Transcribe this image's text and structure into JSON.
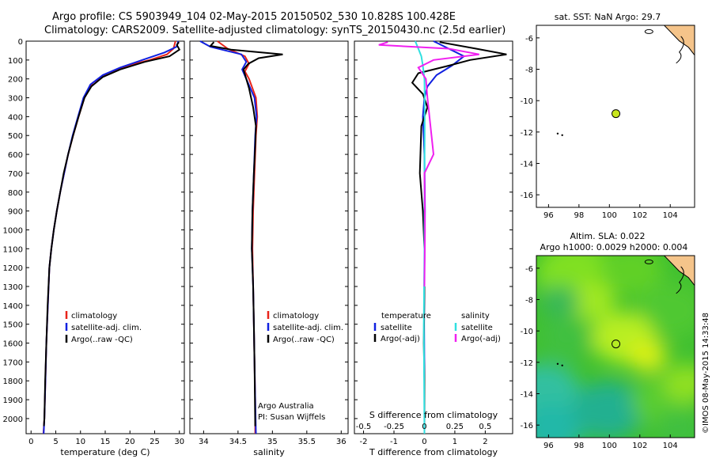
{
  "header": {
    "line1": "Argo profile: CS 5903949_104 02-May-2015 20150502_530 10.828S 100.428E",
    "line2": "Climatology: CARS2009. Satellite-adjusted climatology: synTS_20150430.nc (2.5d earlier)"
  },
  "colors": {
    "climatology": "#e8241a",
    "satellite": "#1020e0",
    "argo": "#000000",
    "sal_satellite": "#30e0e0",
    "sal_argo": "#f020f0",
    "land": "#f5c48a",
    "float_marker": "#c8e61e"
  },
  "chart_data": [
    {
      "type": "line",
      "id": "temperature",
      "xlabel": "temperature (deg C)",
      "ylabel": "",
      "xlim": [
        -1,
        31
      ],
      "ylim": [
        2080,
        0
      ],
      "xticks": [
        "0",
        "5",
        "10",
        "15",
        "20",
        "25",
        "30"
      ],
      "xtick_values": [
        0,
        5,
        10,
        15,
        20,
        25,
        30
      ],
      "yticks": [
        "0",
        "100",
        "200",
        "300",
        "400",
        "500",
        "600",
        "700",
        "800",
        "900",
        "1000",
        "1100",
        "1200",
        "1300",
        "1400",
        "1500",
        "1600",
        "1700",
        "1800",
        "1900",
        "2000"
      ],
      "ytick_values": [
        0,
        100,
        200,
        300,
        400,
        500,
        600,
        700,
        800,
        900,
        1000,
        1100,
        1200,
        1300,
        1400,
        1500,
        1600,
        1700,
        1800,
        1900,
        2000
      ],
      "legend": [
        "climatology",
        "satellite-adj. clim.",
        "Argo(..raw -QC)"
      ],
      "series": [
        {
          "name": "climatology",
          "color_key": "climatology",
          "x": [
            29.2,
            28.8,
            27.5,
            24,
            19.5,
            15.5,
            12.5,
            10.8,
            9.6,
            8.5,
            7.5,
            6.7,
            5.9,
            5.2,
            4.6,
            4.1,
            3.7,
            3.4,
            3.1,
            2.9,
            2.7,
            2.5
          ],
          "y": [
            0,
            40,
            70,
            100,
            130,
            170,
            220,
            300,
            400,
            500,
            600,
            700,
            800,
            900,
            1000,
            1100,
            1200,
            1400,
            1600,
            1800,
            2000,
            2080
          ]
        },
        {
          "name": "satellite-adj. clim.",
          "color_key": "satellite",
          "x": [
            29.8,
            29.4,
            27,
            22.5,
            18,
            14.5,
            12,
            10.6,
            9.5,
            8.4,
            7.5,
            6.7,
            5.9,
            5.2,
            4.6,
            4.1,
            3.7,
            3.4,
            3.1,
            2.9,
            2.7,
            2.55
          ],
          "y": [
            0,
            30,
            60,
            100,
            140,
            180,
            230,
            300,
            400,
            500,
            600,
            700,
            800,
            900,
            1000,
            1100,
            1200,
            1400,
            1600,
            1800,
            2000,
            2080
          ]
        },
        {
          "name": "Argo(..raw -QC)",
          "color_key": "argo",
          "x": [
            29.9,
            29.5,
            30,
            28,
            23,
            18,
            14.5,
            12.2,
            10.8,
            9.6,
            8.5,
            7.5,
            6.6,
            5.9,
            5.2,
            4.6,
            4.1,
            3.7,
            3.35,
            3.1,
            2.85,
            2.7,
            2.6
          ],
          "y": [
            5,
            20,
            45,
            80,
            110,
            150,
            190,
            240,
            300,
            400,
            500,
            600,
            700,
            800,
            900,
            1000,
            1100,
            1200,
            1400,
            1600,
            1800,
            2000,
            2040
          ]
        }
      ]
    },
    {
      "type": "line",
      "id": "salinity",
      "xlabel": "salinity",
      "xlim": [
        33.8,
        36.1
      ],
      "ylim": [
        2080,
        0
      ],
      "xticks": [
        "34",
        "34.5",
        "35",
        "35.5",
        "36"
      ],
      "xtick_values": [
        34,
        34.5,
        35,
        35.5,
        36
      ],
      "legend": [
        "climatology",
        "satellite-adj. clim.",
        "Argo(..raw -QC)"
      ],
      "annotation": [
        "Argo Australia",
        "PI: Susan Wijffels"
      ],
      "series": [
        {
          "name": "climatology",
          "color_key": "climatology",
          "x": [
            34.2,
            34.35,
            34.6,
            34.66,
            34.6,
            34.66,
            34.76,
            34.78,
            34.76,
            34.74,
            34.72,
            34.71,
            34.72,
            34.73,
            34.74,
            34.75,
            34.75
          ],
          "y": [
            0,
            40,
            80,
            120,
            160,
            200,
            300,
            400,
            500,
            700,
            900,
            1100,
            1300,
            1500,
            1700,
            1900,
            2080
          ]
        },
        {
          "name": "satellite-adj. clim.",
          "color_key": "satellite",
          "x": [
            33.95,
            34.1,
            34.55,
            34.62,
            34.56,
            34.62,
            34.74,
            34.77,
            34.75,
            34.73,
            34.71,
            34.7,
            34.72,
            34.73,
            34.74,
            34.75,
            34.76
          ],
          "y": [
            0,
            30,
            70,
            110,
            150,
            200,
            300,
            400,
            500,
            700,
            900,
            1100,
            1300,
            1500,
            1700,
            1900,
            2080
          ]
        },
        {
          "name": "Argo(..raw -QC)",
          "color_key": "argo",
          "x": [
            34.15,
            34.1,
            34.4,
            35.15,
            34.8,
            34.65,
            34.58,
            34.62,
            34.66,
            34.72,
            34.76,
            34.75,
            34.73,
            34.71,
            34.7,
            34.72,
            34.73,
            34.74,
            34.75
          ],
          "y": [
            5,
            25,
            45,
            70,
            90,
            120,
            150,
            200,
            250,
            350,
            450,
            550,
            700,
            900,
            1100,
            1300,
            1500,
            1700,
            2040
          ]
        }
      ]
    },
    {
      "type": "line",
      "id": "differences",
      "xlabel": "T difference from climatology",
      "xlabel_top": "S difference from climatology",
      "xlim": [
        -2.3,
        2.9
      ],
      "ylim": [
        2080,
        0
      ],
      "xticks": [
        "-2",
        "-1",
        "0",
        "1",
        "2"
      ],
      "xtick_values": [
        -2,
        -1,
        0,
        1,
        2
      ],
      "xticks_top": [
        "-0.5",
        "-0.25",
        "0",
        "0.25",
        "0.5"
      ],
      "legend_left_title": "temperature",
      "legend_right_title": "salinity",
      "legend": [
        "satellite",
        "Argo(-adj)",
        "satellite",
        "Argo(-adj)"
      ],
      "series": [
        {
          "name": "T satellite",
          "color_key": "satellite",
          "x": [
            0.3,
            0.8,
            1.3,
            0.9,
            0.4,
            0.1,
            0,
            -0.05,
            0,
            0.02,
            0,
            -0.01,
            0,
            0
          ],
          "y": [
            0,
            40,
            80,
            130,
            180,
            240,
            300,
            400,
            600,
            900,
            1200,
            1500,
            1800,
            2080
          ]
        },
        {
          "name": "T Argo(-adj)",
          "color_key": "argo",
          "x": [
            0.5,
            1.7,
            2.7,
            1.5,
            0.8,
            -0.2,
            -0.4,
            -0.05,
            0.1,
            -0.1,
            -0.15,
            -0.05,
            0,
            0,
            -0.02,
            0,
            0
          ],
          "y": [
            5,
            40,
            70,
            100,
            130,
            170,
            220,
            280,
            350,
            450,
            700,
            900,
            1100,
            1300,
            1600,
            1800,
            2040
          ]
        },
        {
          "name": "S satellite",
          "color_key": "sal_satellite",
          "x": [
            -0.3,
            -0.2,
            -0.1,
            -0.05,
            0,
            0.01,
            0.01,
            0,
            0,
            -0.02,
            0
          ],
          "y": [
            0,
            40,
            80,
            130,
            200,
            300,
            500,
            800,
            1100,
            1500,
            2080
          ]
        },
        {
          "name": "S Argo(-adj)",
          "color_key": "sal_argo",
          "x": [
            -1.2,
            -1.5,
            0.8,
            1.8,
            0.3,
            -0.2,
            0.05,
            0.1,
            0.3,
            0,
            0.02,
            0
          ],
          "y": [
            5,
            20,
            40,
            70,
            100,
            140,
            200,
            300,
            600,
            700,
            1000,
            1300
          ]
        }
      ]
    },
    {
      "type": "scatter",
      "id": "map_sst",
      "title": "sat. SST: NaN Argo: 29.7",
      "xlim": [
        95.2,
        105.6
      ],
      "ylim": [
        -16.8,
        -5.2
      ],
      "xticks": [
        "96",
        "98",
        "100",
        "102",
        "104"
      ],
      "xtick_values": [
        96,
        98,
        100,
        102,
        104
      ],
      "yticks": [
        "-6",
        "-8",
        "-10",
        "-12",
        "-14",
        "-16"
      ],
      "ytick_values": [
        -6,
        -8,
        -10,
        -12,
        -14,
        -16
      ],
      "points": [
        {
          "x": 100.428,
          "y": -10.828,
          "label": "float"
        }
      ]
    },
    {
      "type": "heatmap",
      "id": "map_sla",
      "title1": "Altim. SLA: 0.022",
      "title2": "Argo h1000: 0.0029 h2000: 0.004",
      "xlim": [
        95.2,
        105.6
      ],
      "ylim": [
        -16.8,
        -5.2
      ],
      "xticks": [
        "96",
        "98",
        "100",
        "102",
        "104"
      ],
      "xtick_values": [
        96,
        98,
        100,
        102,
        104
      ],
      "yticks": [
        "-6",
        "-8",
        "-10",
        "-12",
        "-14",
        "-16"
      ],
      "ytick_values": [
        -6,
        -8,
        -10,
        -12,
        -14,
        -16
      ],
      "points": [
        {
          "x": 100.428,
          "y": -10.828,
          "label": "float"
        }
      ]
    }
  ],
  "credit": "©IMOS 08-May-2015 14:33:48"
}
